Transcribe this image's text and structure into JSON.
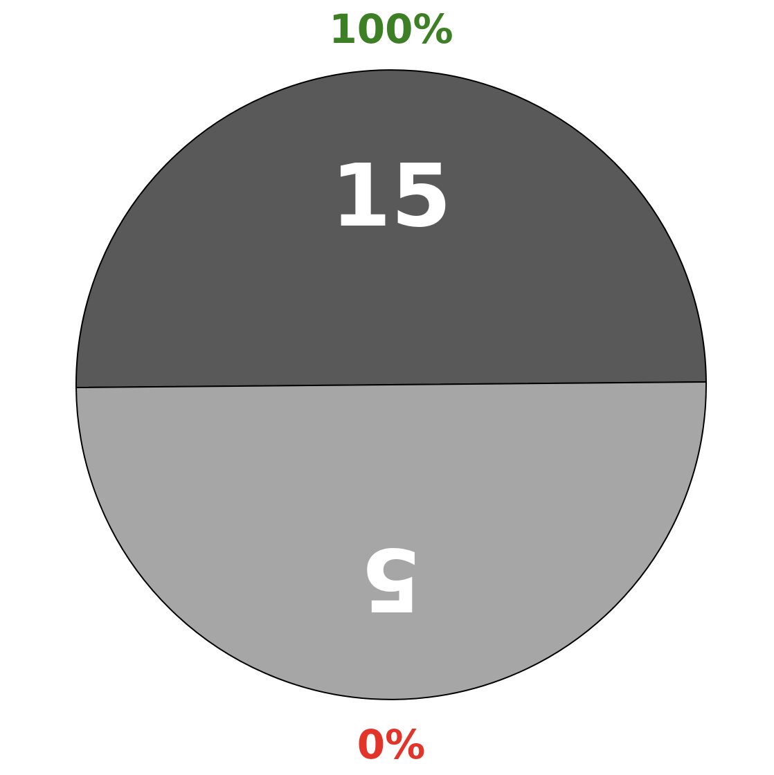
{
  "gauge": {
    "top_label": "100%",
    "bottom_label": "0%",
    "segments": [
      {
        "label": "15"
      },
      {
        "label": "5"
      }
    ]
  }
}
